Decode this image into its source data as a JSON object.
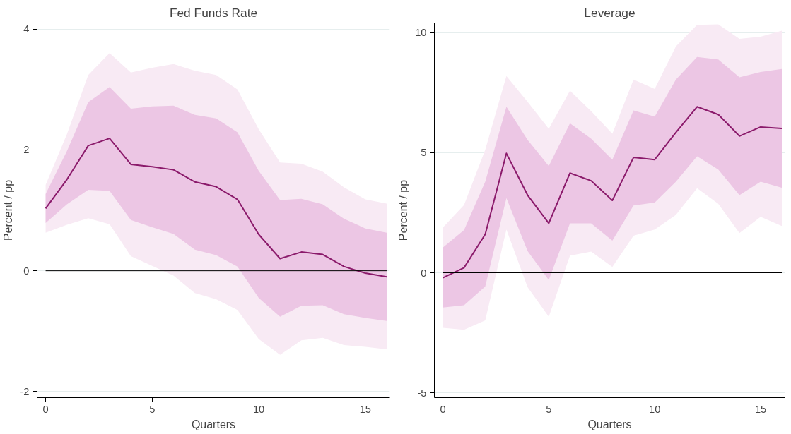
{
  "chart_data": [
    {
      "type": "line",
      "title": "Fed Funds Rate",
      "xlabel": "Quarters",
      "ylabel": "Percent / pp",
      "x": [
        0,
        1,
        2,
        3,
        4,
        5,
        6,
        7,
        8,
        9,
        10,
        11,
        12,
        13,
        14,
        15,
        16
      ],
      "xlim": [
        -0.4,
        16.15
      ],
      "xticks": [
        0,
        5,
        10,
        15
      ],
      "ylim": [
        -2.1,
        4.1
      ],
      "yticks": [
        -2,
        0,
        2,
        4
      ],
      "grid": "y",
      "series": [
        {
          "color": "#f8eaf4",
          "values": [
            null,
            null,
            null,
            null,
            null,
            null,
            null,
            null,
            null,
            null,
            null,
            null,
            null,
            null,
            null,
            null,
            null
          ],
          "lower": [
            0.63,
            0.76,
            0.87,
            0.77,
            0.24,
            0.08,
            -0.08,
            -0.37,
            -0.47,
            -0.65,
            -1.13,
            -1.39,
            -1.15,
            -1.11,
            -1.23,
            -1.26,
            -1.3
          ],
          "upper": [
            1.42,
            2.26,
            3.24,
            3.6,
            3.28,
            3.36,
            3.42,
            3.31,
            3.24,
            3.0,
            2.34,
            1.79,
            1.77,
            1.64,
            1.38,
            1.18,
            1.11
          ]
        },
        {
          "color": "#ecc6e4",
          "values": [
            null,
            null,
            null,
            null,
            null,
            null,
            null,
            null,
            null,
            null,
            null,
            null,
            null,
            null,
            null,
            null,
            null
          ],
          "lower": [
            0.79,
            1.1,
            1.34,
            1.32,
            0.84,
            0.72,
            0.61,
            0.35,
            0.26,
            0.07,
            -0.45,
            -0.76,
            -0.58,
            -0.57,
            -0.72,
            -0.78,
            -0.83
          ],
          "upper": [
            1.27,
            1.98,
            2.79,
            3.04,
            2.68,
            2.72,
            2.73,
            2.58,
            2.52,
            2.29,
            1.65,
            1.17,
            1.19,
            1.1,
            0.86,
            0.7,
            0.63
          ]
        },
        {
          "color": "#8b1a6b",
          "values": [
            1.03,
            1.51,
            2.07,
            2.19,
            1.76,
            1.72,
            1.67,
            1.47,
            1.39,
            1.18,
            0.6,
            0.2,
            0.31,
            0.27,
            0.07,
            -0.04,
            -0.1
          ]
        }
      ],
      "ref_lines": [
        {
          "axis": "y",
          "value": 0,
          "color": "#000000"
        }
      ]
    },
    {
      "type": "line",
      "title": "Leverage",
      "xlabel": "Quarters",
      "ylabel": "Percent / pp",
      "x": [
        0,
        1,
        2,
        3,
        4,
        5,
        6,
        7,
        8,
        9,
        10,
        11,
        12,
        13,
        14,
        15,
        16
      ],
      "xlim": [
        -0.4,
        16.15
      ],
      "xticks": [
        0,
        5,
        10,
        15
      ],
      "ylim": [
        -5.2,
        10.4
      ],
      "yticks": [
        -5,
        0,
        5,
        10
      ],
      "grid": "y",
      "series": [
        {
          "color": "#f8eaf4",
          "values": [
            null,
            null,
            null,
            null,
            null,
            null,
            null,
            null,
            null,
            null,
            null,
            null,
            null,
            null,
            null,
            null,
            null
          ],
          "lower": [
            -2.29,
            -2.37,
            -1.98,
            1.8,
            -0.6,
            -1.83,
            0.71,
            0.88,
            0.24,
            1.54,
            1.8,
            2.41,
            3.52,
            2.87,
            1.65,
            2.33,
            1.95
          ],
          "upper": [
            1.88,
            2.82,
            5.12,
            8.19,
            7.12,
            5.99,
            7.58,
            6.73,
            5.79,
            8.04,
            7.65,
            9.42,
            10.32,
            10.34,
            9.74,
            9.83,
            10.08
          ]
        },
        {
          "color": "#ecc6e4",
          "values": [
            null,
            null,
            null,
            null,
            null,
            null,
            null,
            null,
            null,
            null,
            null,
            null,
            null,
            null,
            null,
            null,
            null
          ],
          "lower": [
            -1.45,
            -1.35,
            -0.57,
            3.11,
            0.9,
            -0.3,
            2.06,
            2.06,
            1.34,
            2.8,
            2.92,
            3.79,
            4.85,
            4.3,
            3.23,
            3.79,
            3.54
          ],
          "upper": [
            1.05,
            1.78,
            3.79,
            6.91,
            5.53,
            4.44,
            6.22,
            5.58,
            4.71,
            6.76,
            6.5,
            8.04,
            8.98,
            8.88,
            8.14,
            8.36,
            8.48
          ]
        },
        {
          "color": "#8b1a6b",
          "values": [
            -0.21,
            0.21,
            1.6,
            4.97,
            3.23,
            2.06,
            4.15,
            3.83,
            3.01,
            4.8,
            4.71,
            5.84,
            6.91,
            6.59,
            5.69,
            6.07,
            6.01
          ]
        }
      ],
      "ref_lines": [
        {
          "axis": "y",
          "value": 0,
          "color": "#000000"
        }
      ]
    }
  ]
}
